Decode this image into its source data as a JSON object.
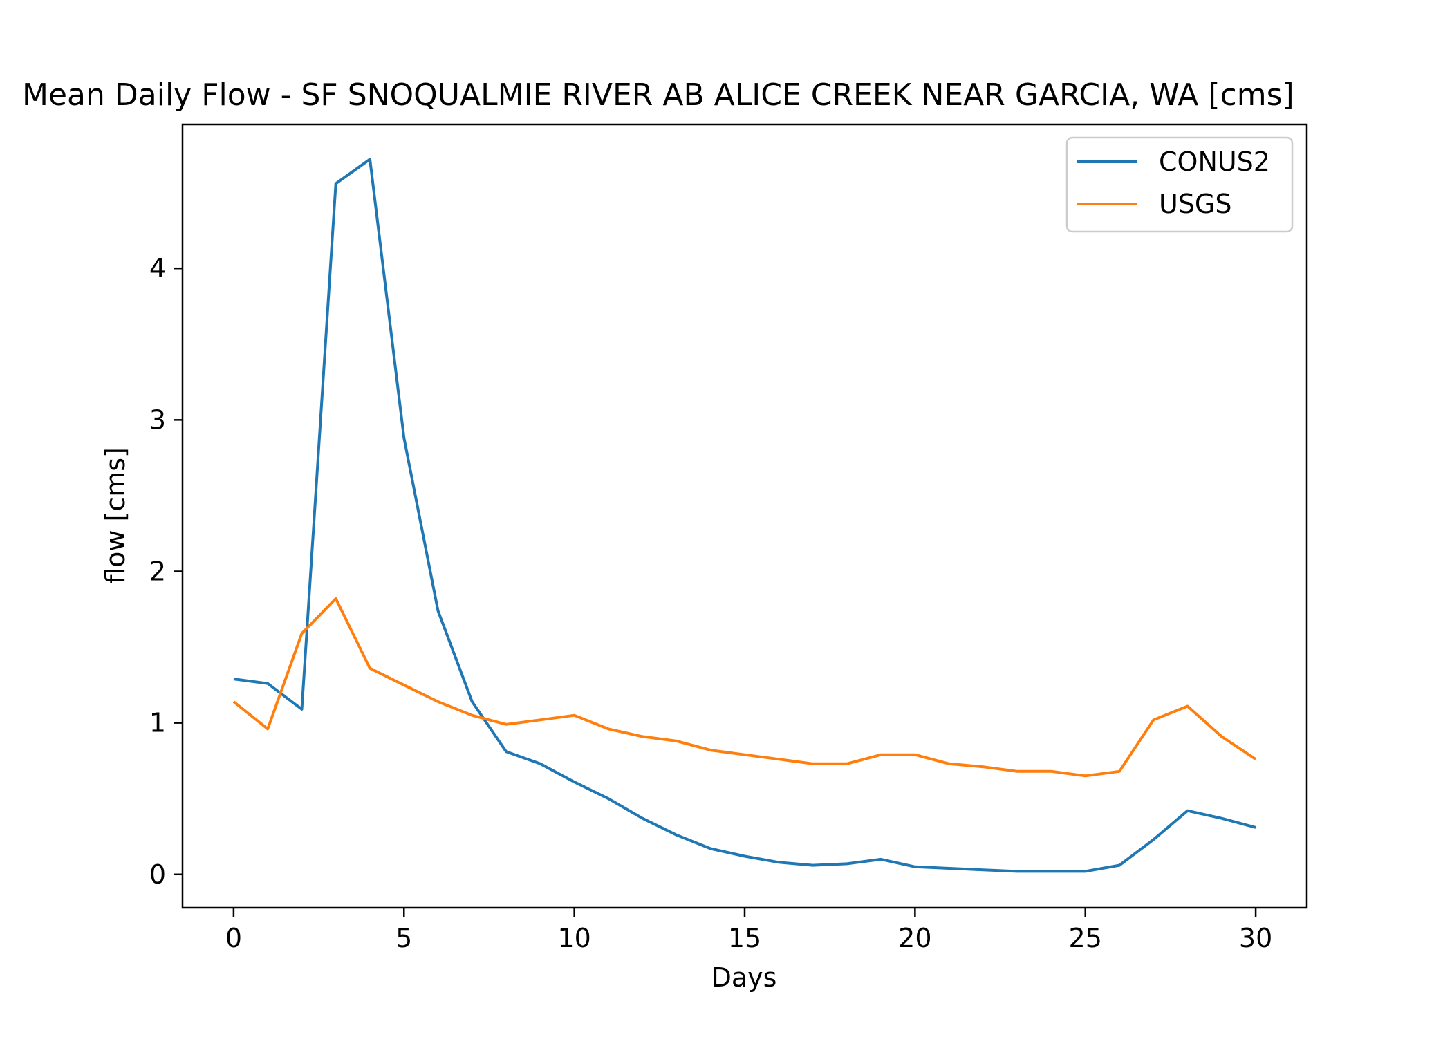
{
  "chart_data": {
    "type": "line",
    "title": "Mean Daily Flow - SF SNOQUALMIE RIVER AB ALICE CREEK NEAR GARCIA, WA [cms]",
    "xlabel": "Days",
    "ylabel": "flow [cms]",
    "xlim": [
      -1.5,
      31.5
    ],
    "ylim": [
      -0.22,
      4.95
    ],
    "xticks": [
      0,
      5,
      10,
      15,
      20,
      25,
      30
    ],
    "yticks": [
      0,
      1,
      2,
      3,
      4
    ],
    "grid": false,
    "legend_position": "top-right",
    "x": [
      0,
      1,
      2,
      3,
      4,
      5,
      6,
      7,
      8,
      9,
      10,
      11,
      12,
      13,
      14,
      15,
      16,
      17,
      18,
      19,
      20,
      21,
      22,
      23,
      24,
      25,
      26,
      27,
      28,
      29,
      30
    ],
    "series": [
      {
        "name": "CONUS2",
        "color": "#1f77b4",
        "values": [
          1.29,
          1.26,
          1.09,
          4.56,
          4.72,
          2.88,
          1.74,
          1.14,
          0.81,
          0.73,
          0.61,
          0.5,
          0.37,
          0.26,
          0.17,
          0.12,
          0.08,
          0.06,
          0.07,
          0.1,
          0.05,
          0.04,
          0.03,
          0.02,
          0.02,
          0.02,
          0.06,
          0.23,
          0.42,
          0.37,
          0.31
        ]
      },
      {
        "name": "USGS",
        "color": "#ff7f0e",
        "values": [
          1.14,
          0.96,
          1.59,
          1.82,
          1.36,
          1.25,
          1.14,
          1.05,
          0.99,
          1.02,
          1.05,
          0.96,
          0.91,
          0.88,
          0.82,
          0.79,
          0.76,
          0.73,
          0.73,
          0.79,
          0.79,
          0.73,
          0.71,
          0.68,
          0.68,
          0.65,
          0.68,
          1.02,
          1.11,
          0.91,
          0.76
        ]
      }
    ]
  }
}
